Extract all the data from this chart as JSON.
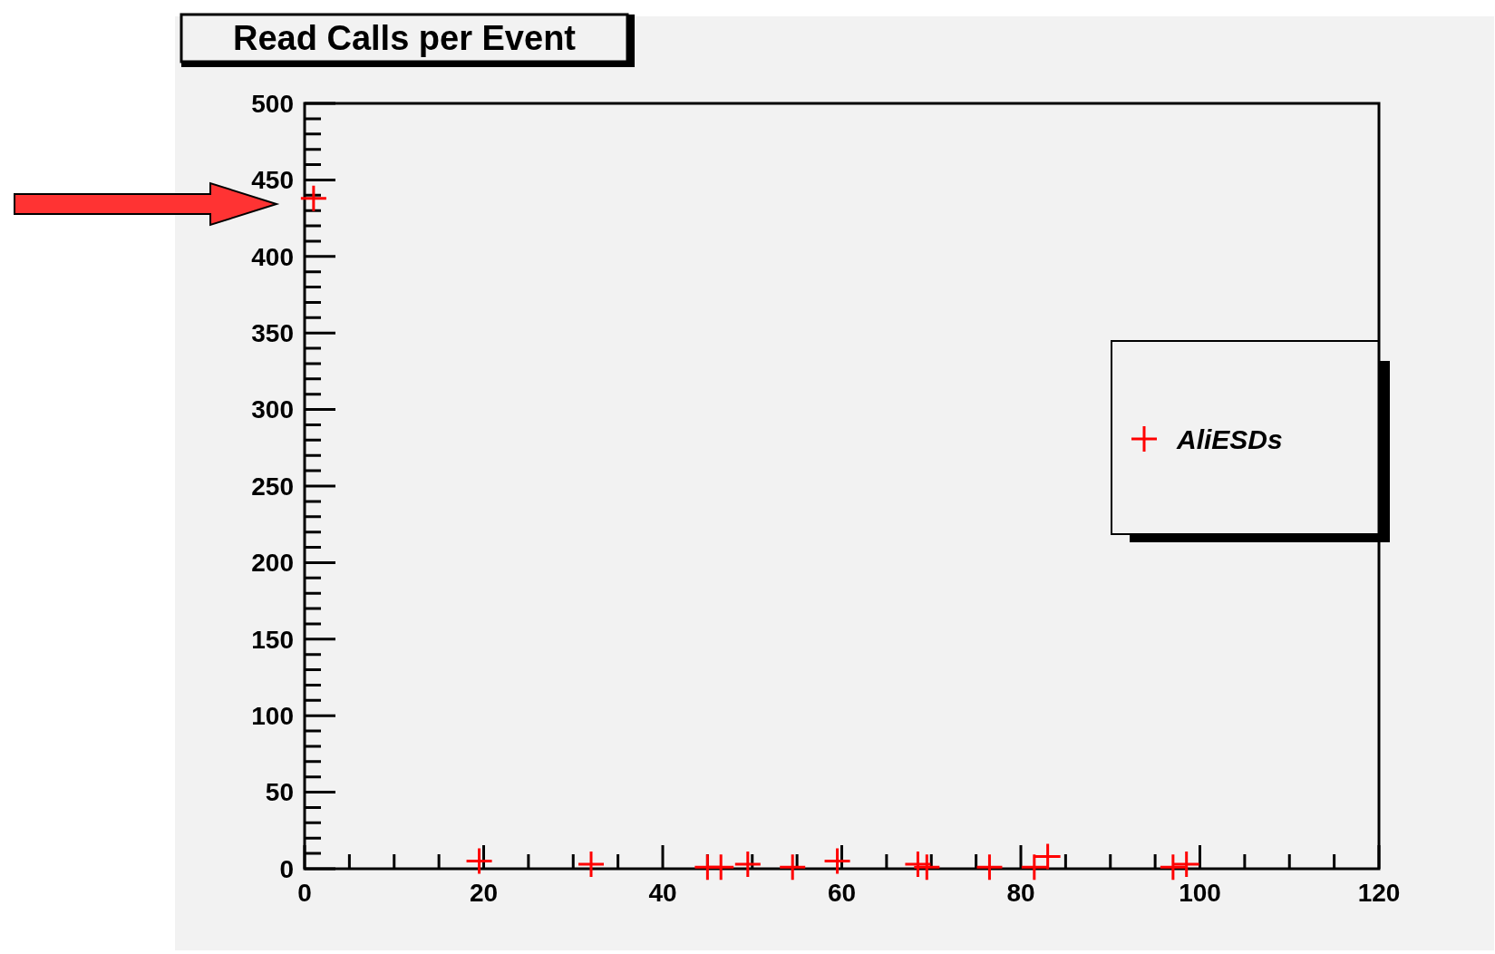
{
  "chart_data": {
    "type": "scatter",
    "title": "Read Calls per Event",
    "marker": "cross",
    "legend": "right",
    "series": [
      {
        "name": "AliESDs",
        "color": "#ff0000",
        "x": [
          1,
          19.5,
          32,
          45,
          46.5,
          49.5,
          54.5,
          59.5,
          68.5,
          69.5,
          76.5,
          81.5,
          83,
          97,
          98.5
        ],
        "values": [
          438,
          5,
          3,
          1,
          1,
          3,
          1,
          5,
          3,
          1,
          1,
          1,
          8,
          1,
          3
        ]
      }
    ],
    "xlim": [
      0,
      120
    ],
    "xticks": [
      0,
      20,
      40,
      60,
      80,
      100,
      120
    ],
    "ylim": [
      0,
      500
    ],
    "yticks": [
      0,
      50,
      100,
      150,
      200,
      250,
      300,
      350,
      400,
      450,
      500
    ]
  }
}
